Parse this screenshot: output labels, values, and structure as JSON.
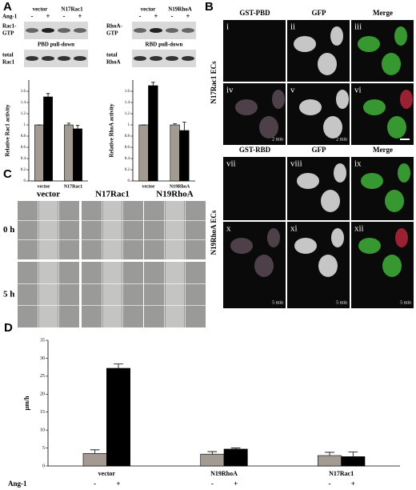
{
  "panel_a": {
    "letter": "A",
    "treatment": "Ang-1",
    "blots": [
      {
        "groups": [
          "vector",
          "N17Rac1"
        ],
        "signs": [
          "-",
          "+",
          "-",
          "+"
        ],
        "top_label": [
          "Rac1-",
          "GTP"
        ],
        "pulldown": "PBD pull-down",
        "bottom_label": [
          "total",
          "Rac1"
        ]
      },
      {
        "groups": [
          "vector",
          "N19RhoA"
        ],
        "signs": [
          "-",
          "+",
          "-",
          "+"
        ],
        "top_label": [
          "RhoA-",
          "GTP"
        ],
        "pulldown": "RBD pull-down",
        "bottom_label": [
          "total",
          "RhoA"
        ]
      }
    ],
    "charts": [
      {
        "type": "bar",
        "y_label": "Relative Rac1 activity",
        "categories": [
          "vector",
          "N17Rac1"
        ],
        "ylim": [
          0,
          1.8
        ],
        "yticks": [
          0,
          0.2,
          0.4,
          0.6,
          0.8,
          1,
          1.2,
          1.4,
          1.6
        ],
        "series": [
          {
            "color": "#a39a92",
            "values": [
              1.0,
              1.0
            ],
            "errors": [
              0.0,
              0.03
            ]
          },
          {
            "color": "#000000",
            "values": [
              1.5,
              0.93
            ],
            "errors": [
              0.06,
              0.06
            ]
          }
        ]
      },
      {
        "type": "bar",
        "y_label": "Relative RhoA activity",
        "categories": [
          "vector",
          "N19RhoA"
        ],
        "ylim": [
          0,
          1.8
        ],
        "yticks": [
          0,
          0.2,
          0.4,
          0.6,
          0.8,
          1,
          1.2,
          1.4,
          1.6
        ],
        "series": [
          {
            "color": "#a39a92",
            "values": [
              1.0,
              1.0
            ],
            "errors": [
              0.0,
              0.02
            ]
          },
          {
            "color": "#000000",
            "values": [
              1.7,
              0.9
            ],
            "errors": [
              0.06,
              0.15
            ]
          }
        ]
      }
    ]
  },
  "panel_b": {
    "letter": "B",
    "columns_top": [
      "GST-PBD",
      "GFP",
      "Merge"
    ],
    "columns_bottom": [
      "GST-RBD",
      "GFP",
      "Merge"
    ],
    "row_groups": [
      "N17Rac1 ECs",
      "N19RhoA ECs"
    ],
    "tiles": [
      {
        "label": "i"
      },
      {
        "label": "ii"
      },
      {
        "label": "iii"
      },
      {
        "label": "iv",
        "time": "2 min"
      },
      {
        "label": "v",
        "time": "2 min"
      },
      {
        "label": "vi"
      },
      {
        "label": "vii"
      },
      {
        "label": "viii"
      },
      {
        "label": "ix"
      },
      {
        "label": "x",
        "time": "5 min"
      },
      {
        "label": "xi",
        "time": "5 min"
      },
      {
        "label": "xii",
        "time": "5 min"
      }
    ]
  },
  "panel_c": {
    "letter": "C",
    "columns": [
      "vector",
      "N17Rac1",
      "N19RhoA"
    ],
    "rows": [
      "0 h",
      "5 h"
    ]
  },
  "panel_d": {
    "letter": "D",
    "chart": {
      "type": "bar",
      "y_label": "µm/h",
      "categories": [
        "vector",
        "N19RhoA",
        "N17Rac1"
      ],
      "ylim": [
        0,
        35
      ],
      "yticks": [
        0,
        5,
        10,
        15,
        20,
        25,
        30,
        35
      ],
      "treatment": "Ang-1",
      "signs": [
        "-",
        "+"
      ],
      "series": [
        {
          "color": "#a39a92",
          "values": [
            3.5,
            3.3,
            2.9
          ],
          "errors": [
            1.0,
            0.7,
            0.9
          ]
        },
        {
          "color": "#000000",
          "values": [
            27.2,
            4.7,
            2.6
          ],
          "errors": [
            1.2,
            0.3,
            1.3
          ]
        }
      ]
    }
  }
}
